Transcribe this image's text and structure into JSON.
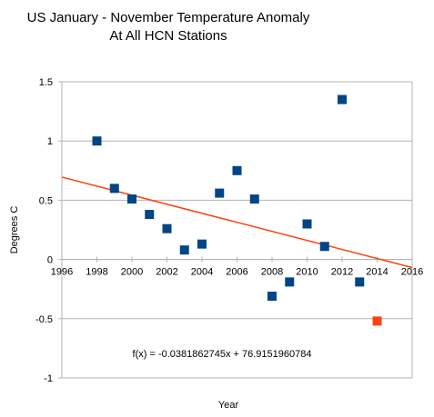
{
  "chart_data": {
    "type": "scatter",
    "title": [
      "US January - November Temperature Anomaly",
      "At All HCN Stations"
    ],
    "xlabel": "Year",
    "ylabel": "Degrees C",
    "xlim": [
      1996,
      2016
    ],
    "ylim": [
      -1,
      1.5
    ],
    "xticks": [
      1996,
      1998,
      2000,
      2002,
      2004,
      2006,
      2008,
      2010,
      2012,
      2014,
      2016
    ],
    "yticks": [
      -1,
      -0.5,
      0,
      0.5,
      1,
      1.5
    ],
    "ytick_labels": [
      "-1",
      "-0.5",
      "0",
      "0.5",
      "1",
      "1.5"
    ],
    "grid": "horizontal",
    "series": [
      {
        "color": "#004586",
        "marker": "square",
        "points": [
          [
            1998,
            1.0
          ],
          [
            1999,
            0.6
          ],
          [
            2000,
            0.51
          ],
          [
            2001,
            0.38
          ],
          [
            2002,
            0.26
          ],
          [
            2003,
            0.08
          ],
          [
            2004,
            0.13
          ],
          [
            2005,
            0.56
          ],
          [
            2006,
            0.75
          ],
          [
            2007,
            0.51
          ],
          [
            2008,
            -0.31
          ],
          [
            2009,
            -0.19
          ],
          [
            2010,
            0.3
          ],
          [
            2011,
            0.11
          ],
          [
            2012,
            1.35
          ],
          [
            2013,
            -0.19
          ]
        ]
      },
      {
        "color": "#ff420e",
        "marker": "square",
        "points": [
          [
            2014,
            -0.52
          ]
        ]
      }
    ],
    "trendline": {
      "slope": -0.0381862745,
      "intercept": 76.9151960784,
      "color": "#ff420e",
      "equation": "f(x) = -0.0381862745x + 76.9151960784"
    }
  }
}
